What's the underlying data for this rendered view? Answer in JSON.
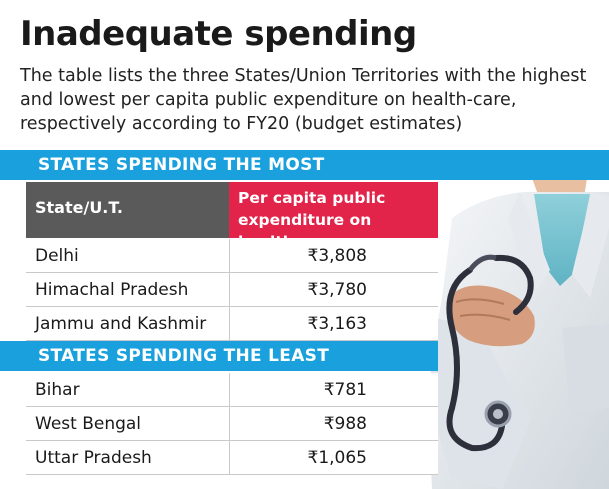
{
  "title": "Inadequate spending",
  "subtitle": "The table lists the three States/Union Territories with the highest and lowest per capita public expenditure on health-care, respectively according to FY20 (budget estimates)",
  "colors": {
    "band": "#1aa0dd",
    "header_left": "#5a5a5a",
    "header_right": "#e2234a"
  },
  "chart_data": {
    "type": "table",
    "columns": [
      "State/U.T.",
      "Per capita public expenditure on healthcare"
    ],
    "sections": [
      {
        "label": "STATES SPENDING THE MOST",
        "rows": [
          {
            "state": "Delhi",
            "value_text": "₹3,808",
            "value": 3808
          },
          {
            "state": "Himachal Pradesh",
            "value_text": "₹3,780",
            "value": 3780
          },
          {
            "state": "Jammu and Kashmir",
            "value_text": "₹3,163",
            "value": 3163
          }
        ]
      },
      {
        "label": "STATES SPENDING THE LEAST",
        "rows": [
          {
            "state": "Bihar",
            "value_text": "₹781",
            "value": 781
          },
          {
            "state": "West Bengal",
            "value_text": "₹988",
            "value": 988
          },
          {
            "state": "Uttar Pradesh",
            "value_text": "₹1,065",
            "value": 1065
          }
        ]
      }
    ]
  },
  "illustration": {
    "icon": "doctor-with-stethoscope-icon"
  }
}
